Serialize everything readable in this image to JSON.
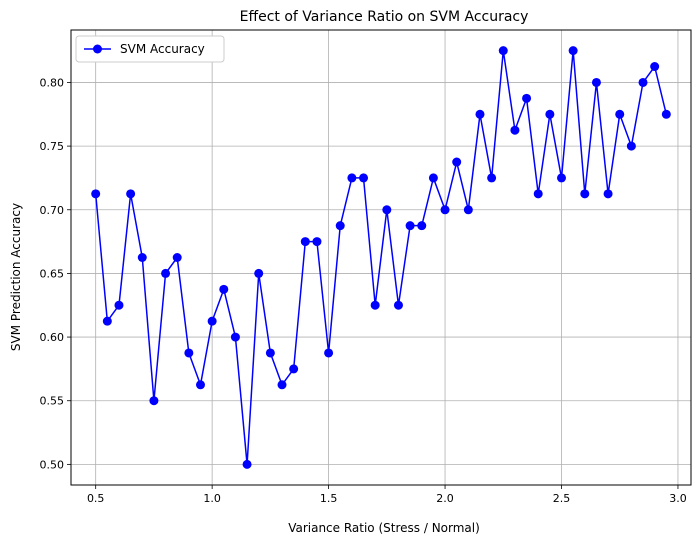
{
  "chart_data": {
    "type": "line",
    "title": "Effect of Variance Ratio on SVM Accuracy",
    "xlabel": "Variance Ratio (Stress / Normal)",
    "ylabel": "SVM Prediction Accuracy",
    "xlim": [
      0.394,
      3.056
    ],
    "ylim": [
      0.4838,
      0.8412
    ],
    "xticks": [
      0.5,
      1.0,
      1.5,
      2.0,
      2.5,
      3.0
    ],
    "xtick_labels": [
      "0.5",
      "1.0",
      "1.5",
      "2.0",
      "2.5",
      "3.0"
    ],
    "yticks": [
      0.5,
      0.55,
      0.6,
      0.65,
      0.7,
      0.75,
      0.8
    ],
    "ytick_labels": [
      "0.50",
      "0.55",
      "0.60",
      "0.65",
      "0.70",
      "0.75",
      "0.80"
    ],
    "grid": true,
    "legend_position": "top-left",
    "series": [
      {
        "name": "SVM Accuracy",
        "color": "#0000ff",
        "marker": "circle",
        "x": [
          0.5,
          0.55,
          0.6,
          0.65,
          0.7,
          0.75,
          0.8,
          0.85,
          0.9,
          0.95,
          1.0,
          1.05,
          1.1,
          1.15,
          1.2,
          1.25,
          1.3,
          1.35,
          1.4,
          1.45,
          1.5,
          1.55,
          1.6,
          1.65,
          1.7,
          1.75,
          1.8,
          1.85,
          1.9,
          1.95,
          2.0,
          2.05,
          2.1,
          2.15,
          2.2,
          2.25,
          2.3,
          2.35,
          2.4,
          2.45,
          2.5,
          2.55,
          2.6,
          2.65,
          2.7,
          2.75,
          2.8,
          2.85,
          2.9,
          2.95
        ],
        "y": [
          0.7125,
          0.6125,
          0.625,
          0.7125,
          0.6625,
          0.55,
          0.65,
          0.6625,
          0.5875,
          0.5625,
          0.6125,
          0.6375,
          0.6,
          0.5,
          0.65,
          0.5875,
          0.5625,
          0.575,
          0.675,
          0.675,
          0.5875,
          0.6875,
          0.725,
          0.725,
          0.625,
          0.7,
          0.625,
          0.6875,
          0.6875,
          0.725,
          0.7,
          0.7375,
          0.7,
          0.775,
          0.725,
          0.825,
          0.7625,
          0.7875,
          0.7125,
          0.775,
          0.725,
          0.825,
          0.7125,
          0.8,
          0.7125,
          0.775,
          0.75,
          0.8,
          0.8125,
          0.775
        ]
      }
    ]
  }
}
